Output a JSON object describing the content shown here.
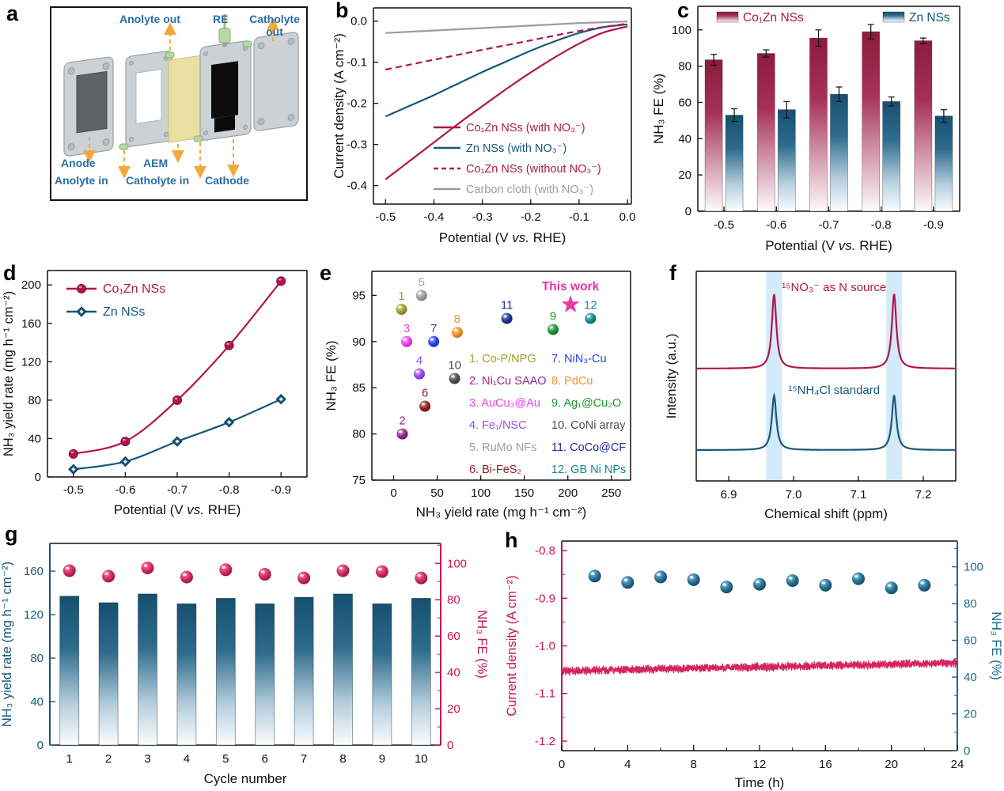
{
  "panels": {
    "a": {
      "letter": "a",
      "labels": {
        "anolyte_out": "Anolyte out",
        "re": "RE",
        "catholyte_out": "Catholyte out",
        "anode": "Anode",
        "anolyte_in": "Anolyte in",
        "aem": "AEM",
        "catholyte_in": "Catholyte in",
        "cathode": "Cathode"
      }
    },
    "b": {
      "letter": "b"
    },
    "c": {
      "letter": "c"
    },
    "d": {
      "letter": "d"
    },
    "e": {
      "letter": "e"
    },
    "f": {
      "letter": "f"
    },
    "g": {
      "letter": "g"
    },
    "h": {
      "letter": "h"
    }
  },
  "chart_data": [
    {
      "id": "b",
      "type": "line",
      "xlabel": "Potential (V vs. RHE)",
      "ylabel": "Current density (A cm⁻²)",
      "xlim": [
        -0.525,
        0.008
      ],
      "ylim": [
        -0.445,
        0.032
      ],
      "xticks": [
        -0.5,
        -0.4,
        -0.3,
        -0.2,
        -0.1,
        0.0
      ],
      "xtick_labels": [
        "-0.5",
        "-0.4",
        "-0.3",
        "-0.2",
        "-0.1",
        "0.0"
      ],
      "yticks": [
        0.0,
        -0.1,
        -0.2,
        -0.3,
        -0.4
      ],
      "ytick_labels": [
        "0.0",
        "-0.1",
        "-0.2",
        "-0.3",
        "-0.4"
      ],
      "grid": false,
      "legend_position": "bottom-right",
      "series": [
        {
          "name": "Co₁Zn NSs (with NO₃⁻)",
          "color": "#b0164e",
          "style": "solid",
          "x": [
            -0.5,
            -0.45,
            -0.4,
            -0.35,
            -0.3,
            -0.25,
            -0.2,
            -0.15,
            -0.1,
            -0.05,
            0.0
          ],
          "y": [
            -0.385,
            -0.34,
            -0.295,
            -0.25,
            -0.207,
            -0.165,
            -0.125,
            -0.088,
            -0.055,
            -0.028,
            -0.013
          ]
        },
        {
          "name": "Zn NSs (with NO₃⁻)",
          "color": "#16587a",
          "style": "solid",
          "x": [
            -0.5,
            -0.45,
            -0.4,
            -0.35,
            -0.3,
            -0.25,
            -0.2,
            -0.15,
            -0.1,
            -0.05,
            0.0
          ],
          "y": [
            -0.232,
            -0.206,
            -0.18,
            -0.152,
            -0.124,
            -0.098,
            -0.072,
            -0.049,
            -0.029,
            -0.015,
            -0.008
          ]
        },
        {
          "name": "Co₁Zn NSs (without NO₃⁻)",
          "color": "#b0164e",
          "style": "dashed",
          "x": [
            -0.5,
            -0.4,
            -0.3,
            -0.2,
            -0.1,
            0.0
          ],
          "y": [
            -0.118,
            -0.094,
            -0.07,
            -0.047,
            -0.024,
            -0.006
          ]
        },
        {
          "name": "Carbon cloth (with NO₃⁻)",
          "color": "#9c9c9c",
          "style": "solid",
          "x": [
            -0.5,
            -0.4,
            -0.3,
            -0.2,
            -0.1,
            0.0
          ],
          "y": [
            -0.029,
            -0.023,
            -0.017,
            -0.011,
            -0.005,
            -0.001
          ]
        }
      ]
    },
    {
      "id": "c",
      "type": "bar",
      "xlabel": "Potential (V vs. RHE)",
      "ylabel": "NH₃ FE (%)",
      "categories": [
        "-0.5",
        "-0.6",
        "-0.7",
        "-0.8",
        "-0.9"
      ],
      "ylim": [
        0,
        113
      ],
      "yticks": [
        0,
        20,
        40,
        60,
        80,
        100
      ],
      "series": [
        {
          "name": "Co₁Zn NSs",
          "color": "#8c1b3e",
          "text_color": "#b0164e",
          "values": [
            83.5,
            87,
            95.5,
            99,
            94
          ],
          "errors": [
            3,
            2,
            4.5,
            4,
            1.5
          ]
        },
        {
          "name": "Zn NSs",
          "color": "#16506f",
          "text_color": "#16587a",
          "values": [
            53,
            56,
            64.5,
            60.5,
            52.5
          ],
          "errors": [
            3.5,
            4.5,
            4,
            2.5,
            3.5
          ]
        }
      ]
    },
    {
      "id": "d",
      "type": "line",
      "xlabel": "Potential (V vs. RHE)",
      "ylabel": "NH₃ yield rate (mg h⁻¹ cm⁻²)",
      "categories": [
        "-0.5",
        "-0.6",
        "-0.7",
        "-0.8",
        "-0.9"
      ],
      "ylim": [
        0,
        215
      ],
      "yticks": [
        0,
        40,
        80,
        120,
        160,
        200
      ],
      "series": [
        {
          "name": "Co₁Zn NSs",
          "color": "#b0164e",
          "marker": "circle",
          "values": [
            24,
            37,
            80,
            137,
            204
          ]
        },
        {
          "name": "Zn NSs",
          "color": "#16587a",
          "marker": "diamond",
          "values": [
            8,
            16,
            37,
            57,
            81
          ]
        }
      ]
    },
    {
      "id": "e",
      "type": "scatter",
      "xlabel": "NH₃ yield rate (mg h⁻¹ cm⁻²)",
      "ylabel": "NH₃ FE (%)",
      "xlim": [
        -25,
        272
      ],
      "xticks": [
        0,
        50,
        100,
        150,
        200,
        250
      ],
      "ylim": [
        75,
        97.6
      ],
      "yticks": [
        75,
        80,
        85,
        90,
        95
      ],
      "points": [
        {
          "n": "1",
          "name": "Co-P/NPG",
          "x": 9,
          "y": 93.5,
          "color": "#a3a02b"
        },
        {
          "n": "2",
          "name": "Ni₁Cu SAAO",
          "x": 10,
          "y": 80.0,
          "color": "#93278f"
        },
        {
          "n": "3",
          "name": "AuCu₃@Au",
          "x": 15,
          "y": 90.0,
          "color": "#ee3ff0"
        },
        {
          "n": "4",
          "name": "Fe₁/NSC",
          "x": 29.5,
          "y": 86.5,
          "color": "#9a4cf0"
        },
        {
          "n": "5",
          "name": "RuMo NFs",
          "x": 32,
          "y": 95.0,
          "color": "#a0a0a0"
        },
        {
          "n": "6",
          "name": "Bi-FeS₂",
          "x": 36,
          "y": 83.0,
          "color": "#8f1e1e"
        },
        {
          "n": "7",
          "name": "NiN₃-Cu",
          "x": 46,
          "y": 90.0,
          "color": "#2742ee"
        },
        {
          "n": "8",
          "name": "PdCu",
          "x": 73,
          "y": 91.0,
          "color": "#f59224"
        },
        {
          "n": "9",
          "name": "Ag₁@Cu₂O",
          "x": 183,
          "y": 91.3,
          "color": "#169a2e"
        },
        {
          "n": "10",
          "name": "CoNi array",
          "x": 70,
          "y": 86.0,
          "color": "#4d4d4d"
        },
        {
          "n": "11",
          "name": "CoCo@CF",
          "x": 130,
          "y": 92.5,
          "color": "#1d2f96"
        },
        {
          "n": "12",
          "name": "GB Ni NPs",
          "x": 226,
          "y": 92.5,
          "color": "#15898c"
        }
      ],
      "this_work": {
        "label": "This work",
        "x": 203,
        "y": 94.0,
        "color": "#f0369e"
      }
    },
    {
      "id": "f",
      "type": "line",
      "xlabel": "Chemical shift (ppm)",
      "ylabel": "Intensity (a.u.)",
      "xlim": [
        6.85,
        7.25
      ],
      "xticks": [
        6.9,
        7.0,
        7.1,
        7.2
      ],
      "xtick_labels": [
        "6.9",
        "7.0",
        "7.1",
        "7.2"
      ],
      "peaks": [
        6.97,
        7.155
      ],
      "band_color": "#cfe8f8",
      "series": [
        {
          "name": "¹⁵NO₃⁻  as N source",
          "color": "#b0164e",
          "baseline": 136,
          "amp": 94
        },
        {
          "name": "¹⁵NH₄Cl  standard",
          "color": "#16587a",
          "baseline": 239,
          "amp": 69
        }
      ]
    },
    {
      "id": "g",
      "type": "bar",
      "xlabel": "Cycle number",
      "ylabel_left": "NH₃ yield rate (mg h⁻¹ cm⁻²)",
      "ylabel_right": "NH₃ FE (%)",
      "categories": [
        "1",
        "2",
        "3",
        "4",
        "5",
        "6",
        "7",
        "8",
        "9",
        "10"
      ],
      "ylim_left": [
        0,
        185.5
      ],
      "yticks_left": [
        0,
        40,
        80,
        120,
        160
      ],
      "ylim_right": [
        0,
        111
      ],
      "yticks_right": [
        0,
        20,
        40,
        60,
        80,
        100
      ],
      "axis_left_color": "#16587a",
      "axis_right_color": "#c6154f",
      "bar_color": "#16506f",
      "dot_color": "#d62e63",
      "yield_values": [
        137,
        131,
        139,
        130,
        135,
        130,
        136,
        139,
        130,
        135
      ],
      "fe_values": [
        96,
        93,
        97.5,
        92.5,
        96.5,
        94,
        92,
        96,
        95.5,
        92
      ]
    },
    {
      "id": "h",
      "type": "line",
      "xlabel": "Time (h)",
      "ylabel_left": "Current density (A cm⁻²)",
      "ylabel_right": "NH₃ FE (%)",
      "xlim": [
        0,
        24
      ],
      "xticks": [
        0,
        4,
        8,
        12,
        16,
        20,
        24
      ],
      "ylim_left": [
        -1.22,
        -0.78
      ],
      "yticks_left": [
        -0.8,
        -0.9,
        -1.0,
        -1.1,
        -1.2
      ],
      "ytick_labels_left": [
        "-0.8",
        "-0.9",
        "-1.0",
        "-1.1",
        "-1.2"
      ],
      "ylim_right": [
        0,
        114
      ],
      "yticks_right": [
        0,
        20,
        40,
        60,
        80,
        100
      ],
      "axis_left_color": "#c6154f",
      "axis_right_color": "#17698e",
      "trace_color": "#d41f5a",
      "dot_color": "#1b5f82",
      "current_mean_start": -1.053,
      "current_mean_end": -1.036,
      "current_noise": 0.009,
      "fe_times": [
        2,
        4,
        6,
        8,
        10,
        12,
        14,
        16,
        18,
        20,
        22
      ],
      "fe_values": [
        95,
        91.5,
        94.5,
        93,
        89,
        90.5,
        92.5,
        90,
        93.5,
        88.5,
        90
      ]
    }
  ]
}
